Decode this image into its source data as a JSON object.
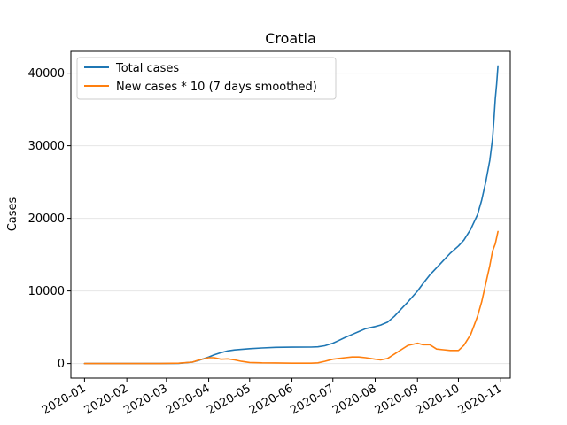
{
  "chart_data": {
    "type": "line",
    "title": "Croatia",
    "xlabel": "",
    "ylabel": "Cases",
    "x_tick_labels": [
      "2020-01",
      "2020-02",
      "2020-03",
      "2020-04",
      "2020-05",
      "2020-06",
      "2020-07",
      "2020-08",
      "2020-09",
      "2020-10",
      "2020-11"
    ],
    "y_tick_labels": [
      "0",
      "10000",
      "20000",
      "30000",
      "40000"
    ],
    "y_ticks": [
      0,
      10000,
      20000,
      30000,
      40000
    ],
    "xlim": [
      "2019-12-22",
      "2020-11-08"
    ],
    "ylim": [
      -2000,
      43000
    ],
    "grid": "horizontal",
    "legend_position": "top-left",
    "series": [
      {
        "name": "Total cases",
        "color": "#1f77b4",
        "points": [
          [
            "2020-01-01",
            0
          ],
          [
            "2020-02-01",
            0
          ],
          [
            "2020-02-25",
            0
          ],
          [
            "2020-03-10",
            20
          ],
          [
            "2020-03-20",
            200
          ],
          [
            "2020-03-25",
            450
          ],
          [
            "2020-04-01",
            900
          ],
          [
            "2020-04-05",
            1200
          ],
          [
            "2020-04-10",
            1500
          ],
          [
            "2020-04-15",
            1750
          ],
          [
            "2020-04-20",
            1880
          ],
          [
            "2020-04-25",
            1950
          ],
          [
            "2020-05-01",
            2050
          ],
          [
            "2020-05-10",
            2150
          ],
          [
            "2020-05-20",
            2230
          ],
          [
            "2020-06-01",
            2250
          ],
          [
            "2020-06-15",
            2270
          ],
          [
            "2020-06-20",
            2300
          ],
          [
            "2020-06-25",
            2450
          ],
          [
            "2020-07-01",
            2800
          ],
          [
            "2020-07-05",
            3150
          ],
          [
            "2020-07-10",
            3600
          ],
          [
            "2020-07-15",
            4000
          ],
          [
            "2020-07-20",
            4400
          ],
          [
            "2020-07-25",
            4800
          ],
          [
            "2020-08-01",
            5100
          ],
          [
            "2020-08-05",
            5300
          ],
          [
            "2020-08-10",
            5700
          ],
          [
            "2020-08-15",
            6500
          ],
          [
            "2020-08-20",
            7500
          ],
          [
            "2020-08-25",
            8500
          ],
          [
            "2020-09-01",
            10000
          ],
          [
            "2020-09-05",
            11000
          ],
          [
            "2020-09-10",
            12200
          ],
          [
            "2020-09-15",
            13200
          ],
          [
            "2020-09-20",
            14200
          ],
          [
            "2020-09-25",
            15200
          ],
          [
            "2020-10-01",
            16200
          ],
          [
            "2020-10-05",
            17000
          ],
          [
            "2020-10-10",
            18500
          ],
          [
            "2020-10-15",
            20500
          ],
          [
            "2020-10-18",
            22500
          ],
          [
            "2020-10-21",
            25000
          ],
          [
            "2020-10-24",
            28000
          ],
          [
            "2020-10-26",
            31000
          ],
          [
            "2020-10-27",
            33500
          ],
          [
            "2020-10-28",
            36500
          ],
          [
            "2020-10-29",
            38500
          ],
          [
            "2020-10-30",
            41000
          ]
        ]
      },
      {
        "name": "New cases * 10 (7 days smoothed)",
        "color": "#ff7f0e",
        "points": [
          [
            "2020-01-01",
            0
          ],
          [
            "2020-02-01",
            0
          ],
          [
            "2020-02-25",
            0
          ],
          [
            "2020-03-10",
            50
          ],
          [
            "2020-03-20",
            200
          ],
          [
            "2020-03-25",
            500
          ],
          [
            "2020-04-01",
            800
          ],
          [
            "2020-04-05",
            800
          ],
          [
            "2020-04-10",
            600
          ],
          [
            "2020-04-15",
            650
          ],
          [
            "2020-04-20",
            500
          ],
          [
            "2020-04-25",
            300
          ],
          [
            "2020-05-01",
            150
          ],
          [
            "2020-05-10",
            100
          ],
          [
            "2020-05-20",
            80
          ],
          [
            "2020-06-01",
            50
          ],
          [
            "2020-06-15",
            50
          ],
          [
            "2020-06-20",
            100
          ],
          [
            "2020-06-25",
            300
          ],
          [
            "2020-07-01",
            600
          ],
          [
            "2020-07-05",
            700
          ],
          [
            "2020-07-10",
            800
          ],
          [
            "2020-07-15",
            900
          ],
          [
            "2020-07-20",
            900
          ],
          [
            "2020-07-25",
            800
          ],
          [
            "2020-08-01",
            600
          ],
          [
            "2020-08-05",
            500
          ],
          [
            "2020-08-10",
            700
          ],
          [
            "2020-08-15",
            1300
          ],
          [
            "2020-08-20",
            1900
          ],
          [
            "2020-08-25",
            2500
          ],
          [
            "2020-09-01",
            2800
          ],
          [
            "2020-09-05",
            2600
          ],
          [
            "2020-09-10",
            2600
          ],
          [
            "2020-09-15",
            2000
          ],
          [
            "2020-09-20",
            1900
          ],
          [
            "2020-09-25",
            1800
          ],
          [
            "2020-10-01",
            1800
          ],
          [
            "2020-10-05",
            2500
          ],
          [
            "2020-10-10",
            4000
          ],
          [
            "2020-10-15",
            6500
          ],
          [
            "2020-10-18",
            8500
          ],
          [
            "2020-10-21",
            11000
          ],
          [
            "2020-10-24",
            13500
          ],
          [
            "2020-10-26",
            15500
          ],
          [
            "2020-10-28",
            16500
          ],
          [
            "2020-10-30",
            18200
          ]
        ]
      }
    ]
  }
}
